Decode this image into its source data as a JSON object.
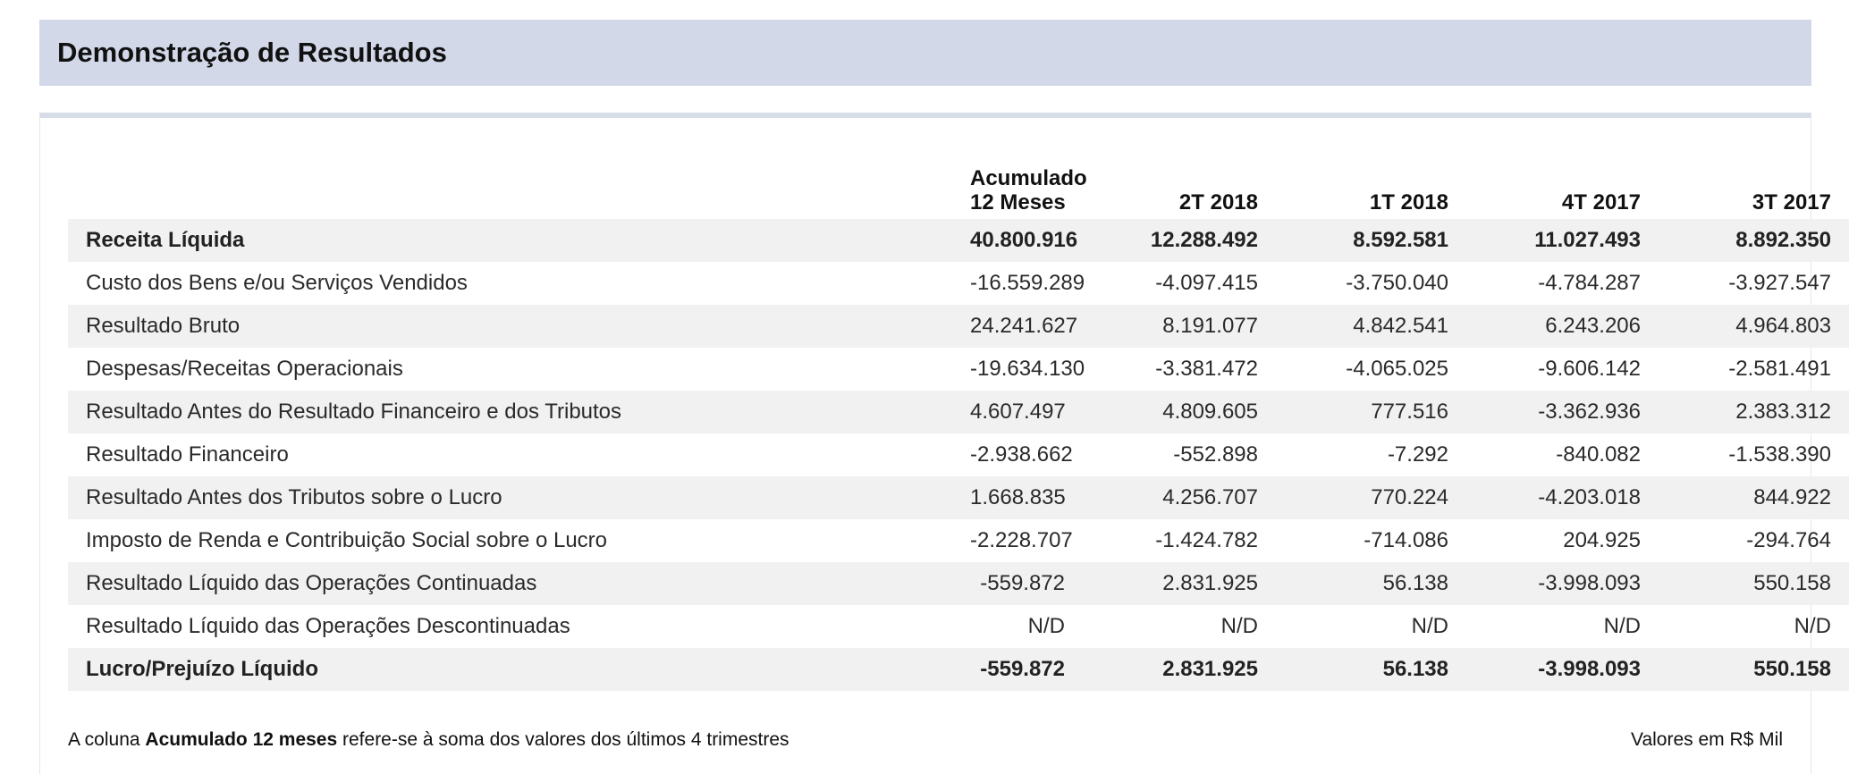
{
  "title": "Demonstração de Resultados",
  "table": {
    "headers": {
      "label": "",
      "accumulated_line1": "Acumulado",
      "accumulated_line2": "12 Meses",
      "q1": "2T 2018",
      "q2": "1T 2018",
      "q3": "4T 2017",
      "q4": "3T 2017"
    },
    "rows": [
      {
        "label": "Receita Líquida",
        "values": [
          "40.800.916",
          "12.288.492",
          "8.592.581",
          "11.027.493",
          "8.892.350"
        ]
      },
      {
        "label": "Custo dos Bens e/ou Serviços Vendidos",
        "values": [
          "-16.559.289",
          "-4.097.415",
          "-3.750.040",
          "-4.784.287",
          "-3.927.547"
        ]
      },
      {
        "label": "Resultado Bruto",
        "values": [
          "24.241.627",
          "8.191.077",
          "4.842.541",
          "6.243.206",
          "4.964.803"
        ]
      },
      {
        "label": "Despesas/Receitas Operacionais",
        "values": [
          "-19.634.130",
          "-3.381.472",
          "-4.065.025",
          "-9.606.142",
          "-2.581.491"
        ]
      },
      {
        "label": "Resultado Antes do Resultado Financeiro e dos Tributos",
        "values": [
          "4.607.497",
          "4.809.605",
          "777.516",
          "-3.362.936",
          "2.383.312"
        ]
      },
      {
        "label": "Resultado Financeiro",
        "values": [
          "-2.938.662",
          "-552.898",
          "-7.292",
          "-840.082",
          "-1.538.390"
        ]
      },
      {
        "label": "Resultado Antes dos Tributos sobre o Lucro",
        "values": [
          "1.668.835",
          "4.256.707",
          "770.224",
          "-4.203.018",
          "844.922"
        ]
      },
      {
        "label": "Imposto de Renda e Contribuição Social sobre o Lucro",
        "values": [
          "-2.228.707",
          "-1.424.782",
          "-714.086",
          "204.925",
          "-294.764"
        ]
      },
      {
        "label": "Resultado Líquido das Operações Continuadas",
        "values": [
          "-559.872",
          "2.831.925",
          "56.138",
          "-3.998.093",
          "550.158"
        ]
      },
      {
        "label": "Resultado Líquido das Operações Descontinuadas",
        "values": [
          "N/D",
          "N/D",
          "N/D",
          "N/D",
          "N/D"
        ]
      },
      {
        "label": "Lucro/Prejuízo Líquido",
        "values": [
          "-559.872",
          "2.831.925",
          "56.138",
          "-3.998.093",
          "550.158"
        ]
      }
    ]
  },
  "footer": {
    "note_prefix": "A coluna ",
    "note_bold": "Acumulado 12 meses",
    "note_suffix": " refere-se à soma dos valores dos últimos 4 trimestres",
    "units": "Valores em R$ Mil"
  },
  "colors": {
    "title_bar_bg": "#d2d8e8",
    "row_shade": "#f1f1f1",
    "panel_top_border": "#d6dde7"
  }
}
